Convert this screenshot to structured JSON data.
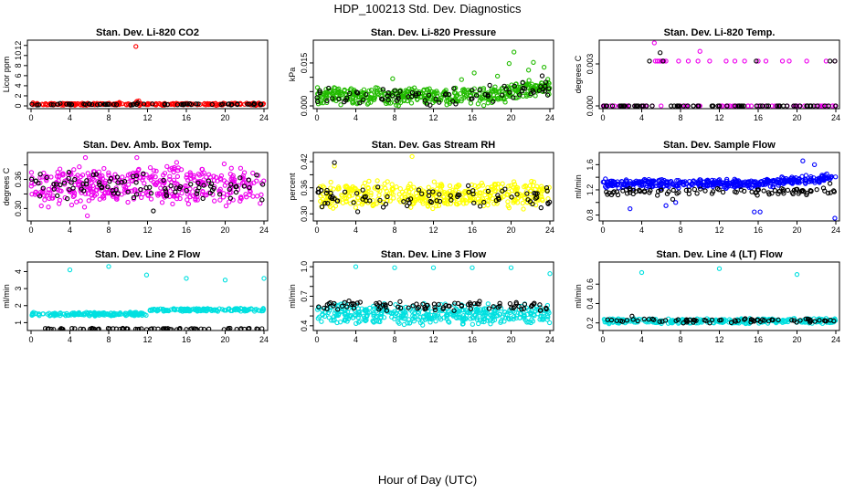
{
  "figure": {
    "title": "HDP_100213  Std. Dev. Diagnostics",
    "xlabel": "Hour of Day (UTC)"
  },
  "chart_data": [
    {
      "type": "scatter",
      "title": "Stan. Dev. Li-820 CO2",
      "ylabel": "Licor ppm",
      "xlim": [
        0,
        24
      ],
      "ylim": [
        0,
        12.5
      ],
      "xticks": [
        0,
        4,
        8,
        12,
        16,
        20,
        24
      ],
      "yticks": [
        0,
        2,
        4,
        6,
        8,
        10,
        12
      ],
      "series": [
        {
          "color": "#ff0000",
          "noise": {
            "base": 0.35,
            "amp": 0.25,
            "n": 220
          },
          "points": [
            [
              0.2,
              0.6
            ],
            [
              2.1,
              0.5
            ],
            [
              5.5,
              0.4
            ],
            [
              9.1,
              0.7
            ],
            [
              10.8,
              11.8
            ],
            [
              10.9,
              0.9
            ],
            [
              11.1,
              1.0
            ],
            [
              13.5,
              0.3
            ],
            [
              18.0,
              0.2
            ],
            [
              22.9,
              0.4
            ]
          ]
        },
        {
          "color": "#000000",
          "noise": {
            "base": 0.3,
            "amp": 0.15,
            "n": 60
          },
          "points": [
            [
              3.0,
              0.5
            ],
            [
              6.0,
              0.4
            ],
            [
              11.0,
              0.6
            ],
            [
              17.0,
              0.4
            ],
            [
              23.0,
              0.5
            ]
          ]
        }
      ]
    },
    {
      "type": "scatter",
      "title": "Stan. Dev. Li-820 Pressure",
      "ylabel": "kPa",
      "xlim": [
        0,
        24
      ],
      "ylim": [
        0,
        0.022
      ],
      "xticks": [
        0,
        4,
        8,
        12,
        16,
        20,
        24
      ],
      "yticks": [
        0,
        0.005,
        0.01,
        0.015
      ],
      "ytick_labels": [
        "0.000",
        "",
        "",
        "0.015"
      ],
      "series": [
        {
          "color": "#22bb00",
          "noise": {
            "base": 0.0035,
            "amp": 0.0035,
            "n": 420,
            "trend_start": 18,
            "trend_amt": 0.004
          },
          "points": [
            [
              7.8,
              0.0095
            ],
            [
              14.9,
              0.0092
            ],
            [
              16.2,
              0.0115
            ],
            [
              18.6,
              0.0104
            ],
            [
              19.8,
              0.0148
            ],
            [
              20.3,
              0.0188
            ],
            [
              21.8,
              0.0125
            ],
            [
              22.3,
              0.0152
            ],
            [
              23.4,
              0.0135
            ]
          ]
        },
        {
          "color": "#000000",
          "noise": {
            "base": 0.003,
            "amp": 0.003,
            "n": 70,
            "trend_start": 18,
            "trend_amt": 0.003
          },
          "points": [
            [
              0.3,
              0.0052
            ],
            [
              1.2,
              0.0062
            ],
            [
              4.1,
              0.0048
            ],
            [
              6.8,
              0.0058
            ],
            [
              10.2,
              0.0042
            ],
            [
              14.1,
              0.0061
            ],
            [
              17.8,
              0.0072
            ],
            [
              19.3,
              0.0069
            ],
            [
              21.2,
              0.0082
            ],
            [
              23.2,
              0.0105
            ]
          ]
        }
      ]
    },
    {
      "type": "scatter",
      "title": "Stan. Dev. Li-820 Temp.",
      "ylabel": "degrees C",
      "xlim": [
        0,
        24
      ],
      "ylim": [
        0,
        0.0045
      ],
      "xticks": [
        0,
        4,
        8,
        12,
        16,
        20,
        24
      ],
      "yticks": [
        0,
        0.003
      ],
      "ytick_labels": [
        "0.000",
        "0.003"
      ],
      "series": [
        {
          "color": "#ee00ee",
          "noise": {
            "base": 0,
            "amp": 0,
            "n": 50
          },
          "points": [
            [
              5.3,
              0.0045
            ],
            [
              5.4,
              0.0032
            ],
            [
              5.6,
              0.0032
            ],
            [
              5.8,
              0.0032
            ],
            [
              6.0,
              0.0032
            ],
            [
              6.1,
              0.0032
            ],
            [
              6.3,
              0.0032
            ],
            [
              6.5,
              0.0032
            ],
            [
              7.8,
              0.0032
            ],
            [
              8.8,
              0.0032
            ],
            [
              9.8,
              0.0032
            ],
            [
              10.0,
              0.0039
            ],
            [
              11.0,
              0.0032
            ],
            [
              12.7,
              0.0032
            ],
            [
              13.6,
              0.0032
            ],
            [
              14.6,
              0.0032
            ],
            [
              16.0,
              0.0032
            ],
            [
              16.8,
              0.0032
            ],
            [
              18.5,
              0.0032
            ],
            [
              19.2,
              0.0032
            ],
            [
              21.0,
              0.0032
            ],
            [
              23.0,
              0.0032
            ],
            [
              23.9,
              0.0032
            ],
            [
              0.2,
              0.0
            ],
            [
              1.2,
              0.0
            ],
            [
              2.5,
              0.0
            ],
            [
              4.0,
              0.0
            ],
            [
              6.0,
              0.0
            ],
            [
              8.0,
              0.0
            ],
            [
              10.0,
              0.0
            ],
            [
              12.0,
              0.0
            ],
            [
              14.0,
              0.0
            ],
            [
              16.0,
              0.0
            ],
            [
              18.0,
              0.0
            ],
            [
              20.0,
              0.0
            ],
            [
              22.0,
              0.0
            ],
            [
              23.9,
              0.0
            ]
          ]
        },
        {
          "color": "#000000",
          "noise": {
            "base": 0,
            "amp": 0,
            "n": 70
          },
          "points": [
            [
              4.8,
              0.0032
            ],
            [
              5.9,
              0.0038
            ],
            [
              6.2,
              0.0032
            ],
            [
              15.8,
              0.0032
            ],
            [
              23.4,
              0.0032
            ],
            [
              23.9,
              0.0032
            ]
          ]
        }
      ]
    },
    {
      "type": "scatter",
      "title": "Stan. Dev. Amb. Box Temp.",
      "ylabel": "degrees C",
      "xlim": [
        0,
        24
      ],
      "ylim": [
        0.28,
        0.41
      ],
      "xticks": [
        0,
        4,
        8,
        12,
        16,
        20,
        24
      ],
      "yticks": [
        0.3,
        0.33,
        0.36,
        0.39
      ],
      "ytick_labels": [
        "0.30",
        "",
        "0.36",
        ""
      ],
      "series": [
        {
          "color": "#ee00ee",
          "noise": {
            "base": 0.345,
            "amp": 0.045,
            "n": 420
          },
          "points": [
            [
              5.6,
              0.405
            ],
            [
              5.8,
              0.285
            ],
            [
              10.9,
              0.405
            ],
            [
              15.0,
              0.395
            ],
            [
              19.9,
              0.392
            ]
          ]
        },
        {
          "color": "#000000",
          "noise": {
            "base": 0.345,
            "amp": 0.03,
            "n": 90
          },
          "points": [
            [
              3.9,
              0.375
            ],
            [
              12.6,
              0.295
            ],
            [
              23.8,
              0.318
            ]
          ]
        }
      ]
    },
    {
      "type": "scatter",
      "title": "Stan. Dev. Gas Stream RH",
      "ylabel": "percent",
      "xlim": [
        0,
        24
      ],
      "ylim": [
        0.29,
        0.435
      ],
      "xticks": [
        0,
        4,
        8,
        12,
        16,
        20,
        24
      ],
      "yticks": [
        0.3,
        0.33,
        0.36,
        0.39,
        0.42
      ],
      "ytick_labels": [
        "0.30",
        "",
        "0.36",
        "",
        "0.42"
      ],
      "series": [
        {
          "color": "#ffff00",
          "noise": {
            "base": 0.345,
            "amp": 0.035,
            "n": 420
          },
          "points": [
            [
              9.8,
              0.432
            ],
            [
              1.8,
              0.41
            ]
          ]
        },
        {
          "color": "#000000",
          "noise": {
            "base": 0.34,
            "amp": 0.028,
            "n": 80
          },
          "points": [
            [
              1.8,
              0.418
            ],
            [
              4.2,
              0.305
            ],
            [
              23.8,
              0.325
            ]
          ]
        }
      ]
    },
    {
      "type": "scatter",
      "title": "Stan. Dev. Sample Flow",
      "ylabel": "ml/min",
      "xlim": [
        0,
        24
      ],
      "ylim": [
        0.75,
        1.75
      ],
      "xticks": [
        0,
        4,
        8,
        12,
        16,
        20,
        24
      ],
      "yticks": [
        0.8,
        1.0,
        1.2,
        1.4,
        1.6
      ],
      "ytick_labels": [
        "0.8",
        "",
        "1.2",
        "",
        "1.6"
      ],
      "series": [
        {
          "color": "#0000ff",
          "noise": {
            "base": 1.3,
            "amp": 0.08,
            "n": 420,
            "trend_start": 16,
            "trend_amt": 0.1
          },
          "points": [
            [
              2.8,
              0.9
            ],
            [
              6.5,
              0.95
            ],
            [
              7.5,
              1.0
            ],
            [
              15.6,
              0.85
            ],
            [
              16.2,
              0.85
            ],
            [
              20.6,
              1.66
            ],
            [
              21.8,
              1.6
            ],
            [
              23.9,
              0.75
            ]
          ]
        },
        {
          "color": "#000000",
          "noise": {
            "base": 1.17,
            "amp": 0.07,
            "n": 90
          },
          "points": [
            [
              2.4,
              1.2
            ],
            [
              7.2,
              1.05
            ],
            [
              23.4,
              1.3
            ]
          ]
        }
      ]
    },
    {
      "type": "scatter",
      "title": "Stan. Dev. Line 2 Flow",
      "ylabel": "ml/min",
      "xlim": [
        0,
        24
      ],
      "ylim": [
        0.7,
        4.4
      ],
      "xticks": [
        0,
        4,
        8,
        12,
        16,
        20,
        24
      ],
      "yticks": [
        1,
        2,
        3,
        4
      ],
      "series": [
        {
          "color": "#00e0e0",
          "noise": {
            "base": 1.5,
            "amp": 0.12,
            "n": 300,
            "step_at": 12,
            "step_amt": 0.25
          },
          "points": [
            [
              4.0,
              4.1
            ],
            [
              8.0,
              4.3
            ],
            [
              11.9,
              3.8
            ],
            [
              16.0,
              3.6
            ],
            [
              20.0,
              3.5
            ],
            [
              24.0,
              3.6
            ]
          ]
        },
        {
          "color": "#000000",
          "noise": {
            "base": 0.63,
            "amp": 0.05,
            "n": 80
          },
          "points": []
        }
      ]
    },
    {
      "type": "scatter",
      "title": "Stan. Dev. Line 3 Flow",
      "ylabel": "ml/min",
      "xlim": [
        0,
        24
      ],
      "ylim": [
        0.38,
        1.02
      ],
      "xticks": [
        0,
        4,
        8,
        12,
        16,
        20,
        24
      ],
      "yticks": [
        0.4,
        0.5,
        0.6,
        0.7,
        0.8,
        0.9,
        1.0
      ],
      "ytick_labels": [
        "0.4",
        "",
        "",
        "0.7",
        "",
        "",
        "1.0"
      ],
      "series": [
        {
          "color": "#00e0e0",
          "noise": {
            "base": 0.52,
            "amp": 0.12,
            "n": 420
          },
          "points": [
            [
              4.0,
              1.0
            ],
            [
              8.0,
              0.99
            ],
            [
              12.0,
              0.99
            ],
            [
              16.0,
              0.99
            ],
            [
              20.0,
              0.99
            ],
            [
              24.0,
              0.93
            ]
          ]
        },
        {
          "color": "#000000",
          "noise": {
            "base": 0.6,
            "amp": 0.06,
            "n": 90
          },
          "points": []
        }
      ]
    },
    {
      "type": "scatter",
      "title": "Stan. Dev. Line 4 (LT) Flow",
      "ylabel": "ml/min",
      "xlim": [
        0,
        24
      ],
      "ylim": [
        0.15,
        0.8
      ],
      "xticks": [
        0,
        4,
        8,
        12,
        16,
        20,
        24
      ],
      "yticks": [
        0.2,
        0.4,
        0.6
      ],
      "series": [
        {
          "color": "#00e0e0",
          "noise": {
            "base": 0.22,
            "amp": 0.03,
            "n": 300
          },
          "points": [
            [
              4.0,
              0.72
            ],
            [
              12.0,
              0.76
            ],
            [
              20.0,
              0.7
            ]
          ]
        },
        {
          "color": "#000000",
          "noise": {
            "base": 0.225,
            "amp": 0.03,
            "n": 70
          },
          "points": [
            [
              3.0,
              0.27
            ],
            [
              23.8,
              0.22
            ]
          ]
        }
      ]
    }
  ]
}
